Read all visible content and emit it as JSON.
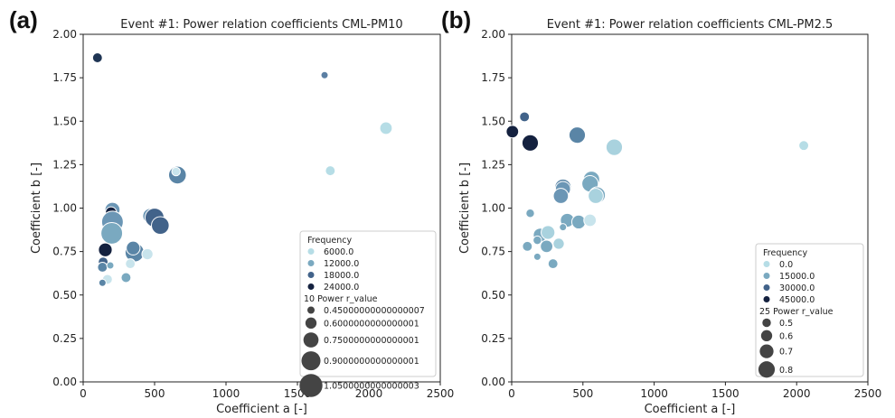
{
  "chart_data": [
    {
      "type": "scatter",
      "panel_label": "(a)",
      "title": "Event #1: Power relation coefficients CML-PM10",
      "xlabel": "Coefficient a [-]",
      "ylabel": "Coefficient b [-]",
      "xlim": [
        0,
        2500
      ],
      "ylim": [
        0,
        2.0
      ],
      "xticks": [
        "0",
        "500",
        "1000",
        "1500",
        "2000",
        "2500"
      ],
      "yticks": [
        "0.00",
        "0.25",
        "0.50",
        "0.75",
        "1.00",
        "1.25",
        "1.50",
        "1.75",
        "2.00"
      ],
      "legend": {
        "placement": "lower right",
        "hue_title": "Frequency",
        "hue_entries": [
          {
            "label": "6000.0",
            "color": "#b6dde6"
          },
          {
            "label": "12000.0",
            "color": "#7aa9c0"
          },
          {
            "label": "18000.0",
            "color": "#42638a"
          },
          {
            "label": "24000.0",
            "color": "#14213f"
          }
        ],
        "size_title": "10 Power r_value",
        "size_entries": [
          {
            "label": "0.45000000000000007",
            "size": 0.45
          },
          {
            "label": "0.6000000000000001",
            "size": 0.6
          },
          {
            "label": "0.7500000000000001",
            "size": 0.75
          },
          {
            "label": "0.9000000000000001",
            "size": 0.9
          },
          {
            "label": "1.0500000000000003",
            "size": 1.05
          }
        ]
      },
      "points": [
        {
          "x": 100,
          "y": 1.865,
          "size": 0.55,
          "color": "#1f3554"
        },
        {
          "x": 1690,
          "y": 1.765,
          "size": 0.45,
          "color": "#5b7fa3"
        },
        {
          "x": 2120,
          "y": 1.46,
          "size": 0.65,
          "color": "#b6dde6"
        },
        {
          "x": 1730,
          "y": 1.215,
          "size": 0.55,
          "color": "#b6dde6"
        },
        {
          "x": 660,
          "y": 1.19,
          "size": 0.85,
          "color": "#5a85a6"
        },
        {
          "x": 650,
          "y": 1.21,
          "size": 0.5,
          "color": "#c8e4ec"
        },
        {
          "x": 205,
          "y": 0.99,
          "size": 0.75,
          "color": "#6b96b5"
        },
        {
          "x": 195,
          "y": 0.975,
          "size": 0.6,
          "color": "#14213f"
        },
        {
          "x": 205,
          "y": 0.92,
          "size": 1.0,
          "color": "#6b96b5"
        },
        {
          "x": 200,
          "y": 0.855,
          "size": 1.0,
          "color": "#7aa9c0"
        },
        {
          "x": 470,
          "y": 0.955,
          "size": 0.75,
          "color": "#6b96b5"
        },
        {
          "x": 500,
          "y": 0.945,
          "size": 0.9,
          "color": "#42638a"
        },
        {
          "x": 540,
          "y": 0.9,
          "size": 0.85,
          "color": "#42638a"
        },
        {
          "x": 360,
          "y": 0.745,
          "size": 0.9,
          "color": "#5a85a6"
        },
        {
          "x": 350,
          "y": 0.77,
          "size": 0.7,
          "color": "#5a85a6"
        },
        {
          "x": 450,
          "y": 0.735,
          "size": 0.6,
          "color": "#c8e4ec"
        },
        {
          "x": 155,
          "y": 0.76,
          "size": 0.7,
          "color": "#14213f"
        },
        {
          "x": 330,
          "y": 0.68,
          "size": 0.55,
          "color": "#c8e4ec"
        },
        {
          "x": 140,
          "y": 0.69,
          "size": 0.55,
          "color": "#42638a"
        },
        {
          "x": 135,
          "y": 0.66,
          "size": 0.55,
          "color": "#5a85a6"
        },
        {
          "x": 190,
          "y": 0.67,
          "size": 0.45,
          "color": "#7aa9c0"
        },
        {
          "x": 300,
          "y": 0.6,
          "size": 0.55,
          "color": "#7aa9c0"
        },
        {
          "x": 170,
          "y": 0.59,
          "size": 0.55,
          "color": "#c8e4ec"
        },
        {
          "x": 135,
          "y": 0.57,
          "size": 0.45,
          "color": "#5a85a6"
        }
      ]
    },
    {
      "type": "scatter",
      "panel_label": "(b)",
      "title": "Event #1: Power relation coefficients CML-PM2.5",
      "xlabel": "Coefficient a [-]",
      "ylabel": "Coefficient b [-]",
      "xlim": [
        0,
        2500
      ],
      "ylim": [
        0,
        2.0
      ],
      "xticks": [
        "0",
        "500",
        "1000",
        "1500",
        "2000",
        "2500"
      ],
      "yticks": [
        "0.00",
        "0.25",
        "0.50",
        "0.75",
        "1.00",
        "1.25",
        "1.50",
        "1.75",
        "2.00"
      ],
      "legend": {
        "placement": "lower right",
        "hue_title": "Frequency",
        "hue_entries": [
          {
            "label": "0.0",
            "color": "#b6dde6"
          },
          {
            "label": "15000.0",
            "color": "#7aa9c0"
          },
          {
            "label": "30000.0",
            "color": "#42638a"
          },
          {
            "label": "45000.0",
            "color": "#14213f"
          }
        ],
        "size_title": "25 Power r_value",
        "size_entries": [
          {
            "label": "0.5",
            "size": 0.5
          },
          {
            "label": "0.6",
            "size": 0.6
          },
          {
            "label": "0.7",
            "size": 0.7
          },
          {
            "label": "0.8",
            "size": 0.8
          }
        ]
      },
      "points": [
        {
          "x": 5,
          "y": 1.44,
          "size": 0.65,
          "color": "#14213f"
        },
        {
          "x": 90,
          "y": 1.525,
          "size": 0.55,
          "color": "#42638a"
        },
        {
          "x": 130,
          "y": 1.375,
          "size": 0.8,
          "color": "#14213f"
        },
        {
          "x": 460,
          "y": 1.42,
          "size": 0.8,
          "color": "#5a85a6"
        },
        {
          "x": 720,
          "y": 1.35,
          "size": 0.8,
          "color": "#a9d2de"
        },
        {
          "x": 2050,
          "y": 1.36,
          "size": 0.55,
          "color": "#b6dde6"
        },
        {
          "x": 560,
          "y": 1.165,
          "size": 0.8,
          "color": "#7aa9c0"
        },
        {
          "x": 550,
          "y": 1.14,
          "size": 0.8,
          "color": "#7aa9c0"
        },
        {
          "x": 360,
          "y": 1.12,
          "size": 0.8,
          "color": "#5a85a6"
        },
        {
          "x": 360,
          "y": 1.11,
          "size": 0.75,
          "color": "#6b96b5"
        },
        {
          "x": 345,
          "y": 1.07,
          "size": 0.75,
          "color": "#6b96b5"
        },
        {
          "x": 600,
          "y": 1.075,
          "size": 0.8,
          "color": "#7aa9c0"
        },
        {
          "x": 590,
          "y": 1.07,
          "size": 0.75,
          "color": "#a9d2de"
        },
        {
          "x": 130,
          "y": 0.97,
          "size": 0.5,
          "color": "#7aa9c0"
        },
        {
          "x": 390,
          "y": 0.93,
          "size": 0.7,
          "color": "#7aa9c0"
        },
        {
          "x": 470,
          "y": 0.92,
          "size": 0.7,
          "color": "#7aa9c0"
        },
        {
          "x": 550,
          "y": 0.93,
          "size": 0.65,
          "color": "#c8e4ec"
        },
        {
          "x": 200,
          "y": 0.845,
          "size": 0.7,
          "color": "#7aa9c0"
        },
        {
          "x": 255,
          "y": 0.86,
          "size": 0.7,
          "color": "#a9d2de"
        },
        {
          "x": 180,
          "y": 0.815,
          "size": 0.5,
          "color": "#7aa9c0"
        },
        {
          "x": 110,
          "y": 0.78,
          "size": 0.55,
          "color": "#7aa9c0"
        },
        {
          "x": 245,
          "y": 0.78,
          "size": 0.65,
          "color": "#7aa9c0"
        },
        {
          "x": 360,
          "y": 0.89,
          "size": 0.45,
          "color": "#7aa9c0"
        },
        {
          "x": 330,
          "y": 0.795,
          "size": 0.6,
          "color": "#a9d2de"
        },
        {
          "x": 180,
          "y": 0.72,
          "size": 0.45,
          "color": "#7aa9c0"
        },
        {
          "x": 290,
          "y": 0.68,
          "size": 0.55,
          "color": "#7aa9c0"
        }
      ]
    }
  ]
}
